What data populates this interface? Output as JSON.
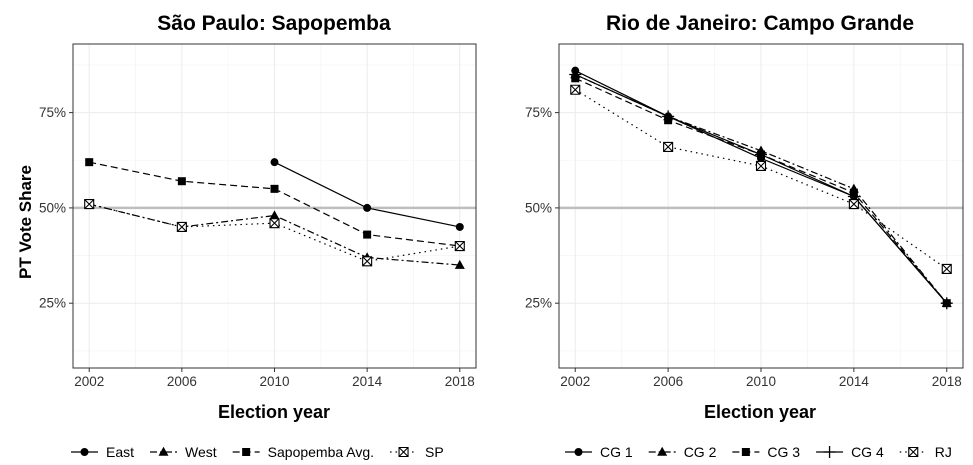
{
  "chart_data": [
    {
      "type": "line",
      "title": "São Paulo: Sapopemba",
      "xlabel": "Election year",
      "ylabel": "PT Vote Share",
      "x": [
        2002,
        2006,
        2010,
        2014,
        2018
      ],
      "xlim": [
        2001.3,
        2018.7
      ],
      "ylim": [
        0.08,
        0.93
      ],
      "y_ticks": [
        0.25,
        0.5,
        0.75
      ],
      "y_tick_labels": [
        "25%",
        "50%",
        "75%"
      ],
      "x_tick_labels": [
        "2002",
        "2006",
        "2010",
        "2014",
        "2018"
      ],
      "reference_line": 0.5,
      "grid": true,
      "series": [
        {
          "name": "East",
          "values": [
            null,
            null,
            0.62,
            0.5,
            0.45
          ],
          "dash": "solid",
          "marker": "circle"
        },
        {
          "name": "West",
          "values": [
            0.51,
            0.45,
            0.48,
            0.37,
            0.35
          ],
          "dash": "dashdot",
          "marker": "triangle"
        },
        {
          "name": "Sapopemba Avg.",
          "values": [
            0.62,
            0.57,
            0.55,
            0.43,
            0.4
          ],
          "dash": "dashed",
          "marker": "square"
        },
        {
          "name": "SP",
          "values": [
            0.51,
            0.45,
            0.46,
            0.36,
            0.4
          ],
          "dash": "dotted",
          "marker": "boxx"
        }
      ]
    },
    {
      "type": "line",
      "title": "Rio de Janeiro: Campo Grande",
      "xlabel": "Election year",
      "ylabel": "",
      "x": [
        2002,
        2006,
        2010,
        2014,
        2018
      ],
      "xlim": [
        2001.3,
        2018.7
      ],
      "ylim": [
        0.08,
        0.93
      ],
      "y_ticks": [
        0.25,
        0.5,
        0.75
      ],
      "y_tick_labels": [
        "25%",
        "50%",
        "75%"
      ],
      "x_tick_labels": [
        "2002",
        "2006",
        "2010",
        "2014",
        "2018"
      ],
      "reference_line": 0.5,
      "grid": true,
      "series": [
        {
          "name": "CG 1",
          "values": [
            0.86,
            0.74,
            0.63,
            0.53,
            0.25
          ],
          "dash": "solid",
          "marker": "circle"
        },
        {
          "name": "CG 2",
          "values": [
            0.85,
            0.74,
            0.65,
            0.55,
            0.25
          ],
          "dash": "dashdot",
          "marker": "triangle"
        },
        {
          "name": "CG 3",
          "values": [
            0.84,
            0.73,
            0.64,
            0.54,
            0.25
          ],
          "dash": "dashed",
          "marker": "square"
        },
        {
          "name": "CG 4",
          "values": [
            0.85,
            0.74,
            0.64,
            0.53,
            0.25
          ],
          "dash": "solid",
          "marker": "plus"
        },
        {
          "name": "RJ",
          "values": [
            0.81,
            0.66,
            0.61,
            0.51,
            0.34
          ],
          "dash": "dotted",
          "marker": "boxx"
        }
      ]
    }
  ],
  "colors": {
    "panel_border": "#333333",
    "grid_major": "#ebebeb",
    "grid_minor": "#f5f5f5",
    "reference_line": "#bebebe",
    "series": "#000000"
  }
}
